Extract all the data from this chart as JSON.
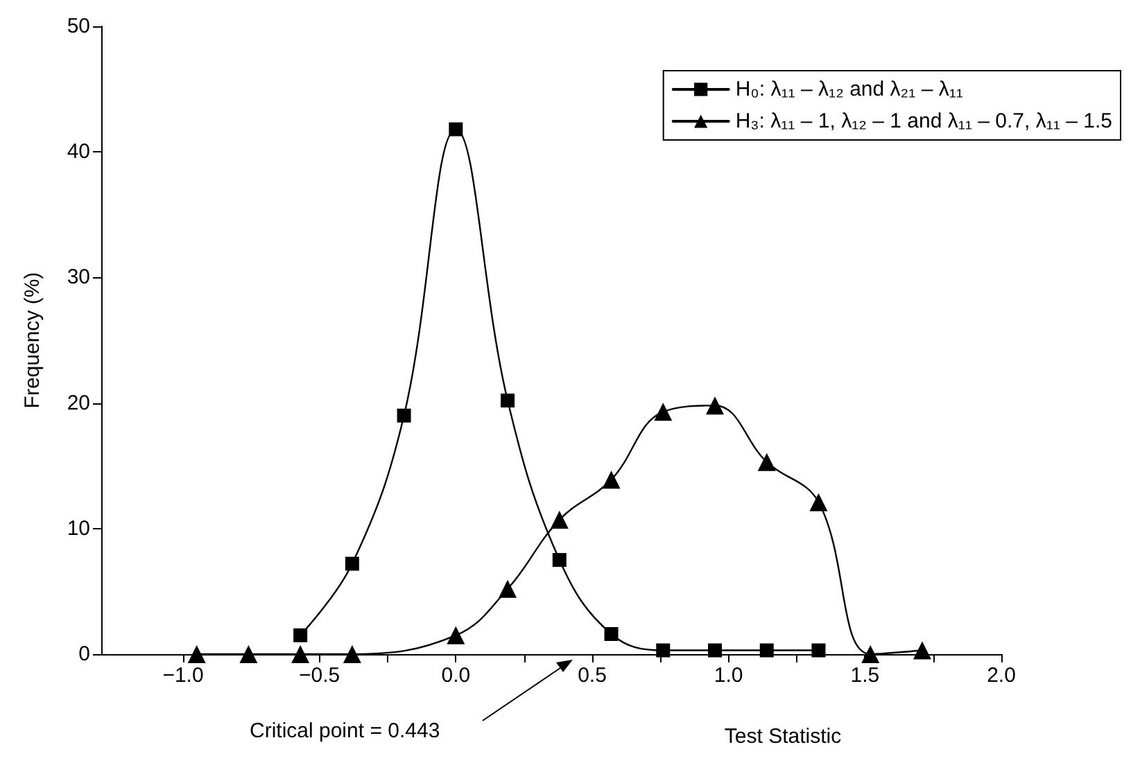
{
  "chart_data": {
    "type": "line",
    "xlabel": "Test Statistic",
    "ylabel": "Frequency (%)",
    "xlim": [
      -1.3,
      2.0
    ],
    "ylim": [
      0,
      50
    ],
    "xticks": [
      {
        "value": -1.0,
        "label": "−1.0"
      },
      {
        "value": -0.75,
        "label": null
      },
      {
        "value": -0.5,
        "label": "−0.5"
      },
      {
        "value": -0.25,
        "label": null
      },
      {
        "value": 0.0,
        "label": "0.0"
      },
      {
        "value": 0.25,
        "label": null
      },
      {
        "value": 0.5,
        "label": "0.5"
      },
      {
        "value": 0.75,
        "label": null
      },
      {
        "value": 1.0,
        "label": "1.0"
      },
      {
        "value": 1.25,
        "label": null
      },
      {
        "value": 1.5,
        "label": "1.5"
      },
      {
        "value": 1.75,
        "label": null
      },
      {
        "value": 2.0,
        "label": "2.0"
      }
    ],
    "yticks": [
      0,
      10,
      20,
      30,
      40,
      50
    ],
    "grid": false,
    "legend": "top right",
    "line_style": "solid",
    "series": [
      {
        "name": "H₀: λ₁₁ – λ₁₂ and λ₂₁ – λ₁₁",
        "color": "#000000",
        "marker": "square",
        "x": [
          -0.57,
          -0.38,
          -0.19,
          0.0,
          0.19,
          0.38,
          0.57,
          0.76,
          0.95,
          1.14,
          1.33
        ],
        "values": [
          1.5,
          7.2,
          19.0,
          41.8,
          20.2,
          7.5,
          1.6,
          0.3,
          0.3,
          0.3,
          0.3
        ]
      },
      {
        "name": "H₃: λ₁₁ – 1, λ₁₂ – 1 and λ₁₁ – 0.7, λ₁₁ – 1.5",
        "color": "#000000",
        "marker": "triangle",
        "x": [
          -0.95,
          -0.76,
          -0.57,
          -0.38,
          0.0,
          0.19,
          0.38,
          0.57,
          0.76,
          0.95,
          1.14,
          1.33,
          1.52,
          1.71
        ],
        "values": [
          0,
          0,
          0,
          0,
          1.5,
          5.2,
          10.7,
          13.9,
          19.3,
          19.8,
          15.3,
          12.1,
          0,
          0.3
        ]
      }
    ],
    "annotations": [
      "Critical point = 0.443"
    ]
  }
}
